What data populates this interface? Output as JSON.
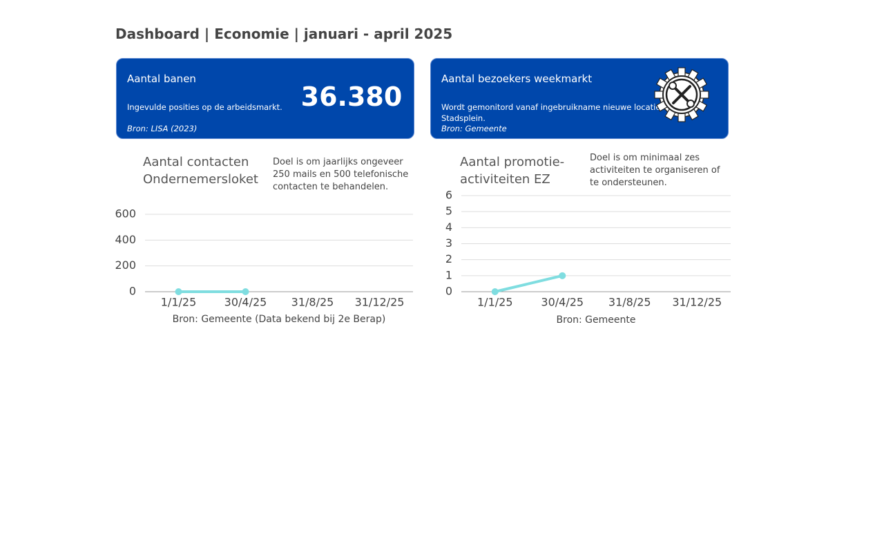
{
  "header": {
    "title": "Dashboard | Economie | januari - april 2025"
  },
  "cards": [
    {
      "title": "Aantal banen",
      "subtitle": "Ingevulde posities op de arbeidsmarkt.",
      "source": "Bron: LISA (2023)",
      "value": "36.380"
    },
    {
      "title": "Aantal bezoekers weekmarkt",
      "subtitle": "Wordt gemonitord vanaf ingebruikname nieuwe locatie Stadsplein.",
      "source": "Bron: Gemeente"
    }
  ],
  "chart_data": [
    {
      "type": "line",
      "title": "Aantal contacten Ondernemersloket",
      "subtitle": "Doel is om jaarlijks ongeveer 250 mails en 500 telefonische contacten te behandelen.",
      "source": "Bron: Gemeente (Data bekend bij 2e Berap)",
      "categories": [
        "1/1/25",
        "30/4/25",
        "31/8/25",
        "31/12/25"
      ],
      "series": [
        {
          "color": "#7fdde0",
          "values": [
            0,
            0,
            null,
            null
          ]
        }
      ],
      "ylim": [
        0,
        600
      ],
      "yticks": [
        0,
        200,
        400,
        600
      ],
      "grid": true
    },
    {
      "type": "line",
      "title": "Aantal promotie-activiteiten EZ",
      "subtitle": "Doel is om minimaal zes activiteiten te organiseren of te ondersteunen.",
      "source": "Bron: Gemeente",
      "categories": [
        "1/1/25",
        "30/4/25",
        "31/8/25",
        "31/12/25"
      ],
      "series": [
        {
          "color": "#7fdde0",
          "values": [
            0,
            1,
            null,
            null
          ]
        }
      ],
      "ylim": [
        0,
        6
      ],
      "yticks": [
        0,
        1,
        2,
        3,
        4,
        5,
        6
      ],
      "grid": true
    }
  ]
}
